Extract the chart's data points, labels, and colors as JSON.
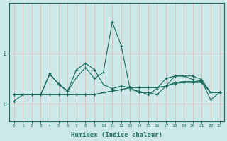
{
  "xlabel": "Humidex (Indice chaleur)",
  "background_color": "#cce8e8",
  "grid_color": "#e8b8b8",
  "line_color": "#1a6b5a",
  "x_ticks": [
    0,
    1,
    2,
    3,
    4,
    5,
    6,
    7,
    8,
    9,
    10,
    11,
    12,
    13,
    14,
    15,
    16,
    17,
    18,
    19,
    20,
    21,
    22,
    23
  ],
  "y_ticks": [
    0,
    1
  ],
  "xlim": [
    -0.5,
    23.5
  ],
  "ylim": [
    -0.35,
    2.0
  ],
  "series": [
    [
      0.05,
      0.18,
      0.18,
      0.18,
      0.58,
      0.4,
      0.25,
      0.68,
      0.8,
      0.68,
      0.38,
      0.3,
      0.35,
      0.32,
      0.22,
      0.22,
      0.18,
      0.35,
      0.55,
      0.55,
      0.55,
      0.48,
      0.22,
      0.22
    ],
    [
      0.18,
      0.18,
      0.18,
      0.18,
      0.6,
      0.38,
      0.25,
      0.52,
      0.72,
      0.5,
      0.62,
      1.62,
      1.15,
      0.28,
      0.25,
      0.18,
      0.3,
      0.5,
      0.55,
      0.55,
      0.48,
      0.45,
      0.08,
      0.22
    ],
    [
      0.18,
      0.18,
      0.18,
      0.18,
      0.18,
      0.18,
      0.18,
      0.18,
      0.18,
      0.18,
      0.22,
      0.25,
      0.28,
      0.32,
      0.32,
      0.32,
      0.32,
      0.35,
      0.42,
      0.44,
      0.44,
      0.44,
      0.22,
      0.22
    ],
    [
      0.18,
      0.18,
      0.18,
      0.18,
      0.18,
      0.18,
      0.18,
      0.18,
      0.18,
      0.18,
      0.22,
      0.25,
      0.28,
      0.32,
      0.32,
      0.32,
      0.32,
      0.35,
      0.4,
      0.42,
      0.42,
      0.42,
      0.22,
      0.22
    ]
  ]
}
